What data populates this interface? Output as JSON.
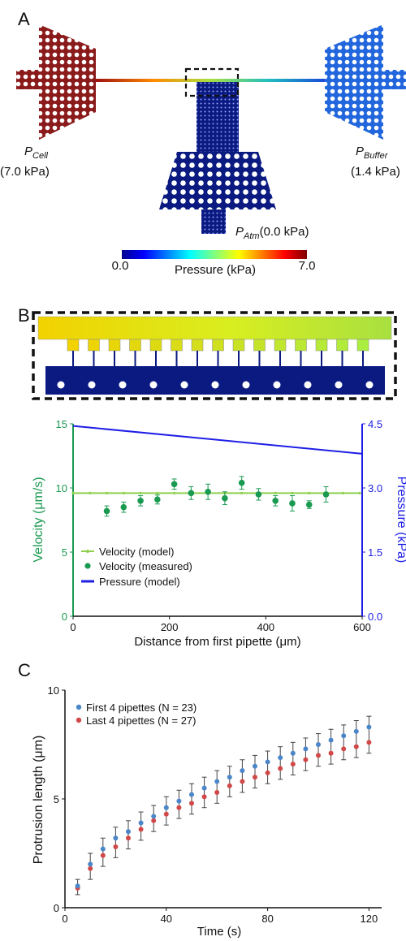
{
  "panels": {
    "a": "A",
    "b": "B",
    "c": "C"
  },
  "panel_a": {
    "cell_label_main": "P",
    "cell_label_sub": "Cell",
    "cell_value": "(7.0 kPa)",
    "buffer_label_main": "P",
    "buffer_label_sub": "Buffer",
    "buffer_value": "(1.4 kPa)",
    "atm_label_main": "P",
    "atm_label_sub": "Atm",
    "atm_value": "(0.0 kPa)",
    "colorbar": {
      "min": "0.0",
      "max": "7.0",
      "title": "Pressure (kPa)"
    },
    "colors": {
      "cell": "#8b1a1a",
      "buffer": "#2266dd",
      "atm": "#0a1a80"
    }
  },
  "chart_data": [
    {
      "type": "line",
      "panel": "B",
      "xlabel": "Distance from first pipette (μm)",
      "ylabel_left": "Velocity (μm/s)",
      "ylabel_right": "Pressure (kPa)",
      "xlim": [
        0,
        600
      ],
      "ylim_left": [
        0,
        15
      ],
      "ylim_right": [
        0,
        4.5
      ],
      "xticks": [
        "0",
        "200",
        "400",
        "600"
      ],
      "yticks_left": [
        "0",
        "5",
        "10",
        "15"
      ],
      "yticks_right": [
        "0.0",
        "1.5",
        "3.0",
        "4.5"
      ],
      "legend_placement": "bottom-left",
      "series": [
        {
          "name": "Velocity (model)",
          "kind": "line-marker",
          "color": "#8fd14f",
          "axis": "left",
          "x": [
            0,
            35,
            70,
            105,
            140,
            175,
            210,
            245,
            280,
            315,
            350,
            385,
            420,
            455,
            490,
            525,
            560,
            595
          ],
          "y": [
            9.6,
            9.6,
            9.6,
            9.6,
            9.6,
            9.6,
            9.6,
            9.6,
            9.6,
            9.6,
            9.6,
            9.6,
            9.6,
            9.6,
            9.6,
            9.6,
            9.6,
            9.6
          ]
        },
        {
          "name": "Velocity (measured)",
          "kind": "scatter-err",
          "color": "#1a9a50",
          "axis": "left",
          "x": [
            70,
            105,
            140,
            175,
            210,
            245,
            280,
            315,
            350,
            385,
            420,
            455,
            490,
            525
          ],
          "y": [
            8.2,
            8.5,
            9.0,
            9.1,
            10.3,
            9.6,
            9.7,
            9.2,
            10.4,
            9.5,
            9.0,
            8.8,
            8.7,
            9.5
          ],
          "err": [
            0.4,
            0.4,
            0.4,
            0.35,
            0.4,
            0.5,
            0.6,
            0.5,
            0.5,
            0.45,
            0.4,
            0.6,
            0.3,
            0.6
          ]
        },
        {
          "name": "Pressure (model)",
          "kind": "line",
          "color": "#1e1ee6",
          "axis": "right",
          "x": [
            0,
            600
          ],
          "y": [
            4.45,
            3.8
          ]
        }
      ]
    },
    {
      "type": "scatter",
      "panel": "C",
      "xlabel": "Time (s)",
      "ylabel": "Protrusion length (μm)",
      "xlim": [
        0,
        125
      ],
      "ylim": [
        0,
        10
      ],
      "xticks": [
        "0",
        "40",
        "80",
        "120"
      ],
      "yticks": [
        "0",
        "5",
        "10"
      ],
      "legend_placement": "top-left",
      "series": [
        {
          "name": "First 4 pipettes (N = 23)",
          "color": "#4a86c8",
          "x": [
            5,
            10,
            15,
            20,
            25,
            30,
            35,
            40,
            45,
            50,
            55,
            60,
            65,
            70,
            75,
            80,
            85,
            90,
            95,
            100,
            105,
            110,
            115,
            120
          ],
          "y": [
            1.0,
            2.0,
            2.7,
            3.2,
            3.5,
            3.9,
            4.2,
            4.6,
            4.9,
            5.2,
            5.5,
            5.8,
            6.0,
            6.3,
            6.5,
            6.7,
            6.9,
            7.1,
            7.3,
            7.5,
            7.7,
            7.9,
            8.1,
            8.3
          ],
          "err": [
            0.3,
            0.5,
            0.5,
            0.5,
            0.5,
            0.5,
            0.5,
            0.5,
            0.5,
            0.5,
            0.5,
            0.5,
            0.5,
            0.5,
            0.5,
            0.5,
            0.5,
            0.5,
            0.5,
            0.5,
            0.5,
            0.5,
            0.5,
            0.5
          ]
        },
        {
          "name": "Last 4 pipettes (N = 27)",
          "color": "#d24848",
          "x": [
            5,
            10,
            15,
            20,
            25,
            30,
            35,
            40,
            45,
            50,
            55,
            60,
            65,
            70,
            75,
            80,
            85,
            90,
            95,
            100,
            105,
            110,
            115,
            120
          ],
          "y": [
            0.9,
            1.8,
            2.4,
            2.8,
            3.2,
            3.6,
            4.0,
            4.3,
            4.6,
            4.8,
            5.1,
            5.3,
            5.6,
            5.8,
            6.0,
            6.2,
            6.4,
            6.6,
            6.8,
            7.0,
            7.1,
            7.3,
            7.4,
            7.6
          ]
        }
      ]
    }
  ]
}
